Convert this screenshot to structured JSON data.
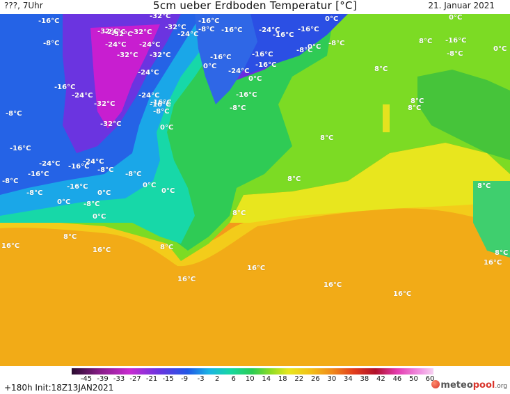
{
  "header": {
    "left": "???, 7Uhr",
    "title": "5cm ueber Erdboden Temperatur [°C]",
    "date": "21. Januar 2021"
  },
  "colors": {
    "extreme_cold": "#7a1fd6",
    "very_cold": "#1f4be0",
    "cold": "#13b6e0",
    "zero": "#10d48a",
    "cool": "#23c95a",
    "mild": "#7cdb24",
    "warm_yellow": "#e8e61e",
    "warm": "#f2c018",
    "hot": "#f39a1b"
  },
  "labels": [
    {
      "text": "-16°C"
    },
    {
      "text": "-32°C"
    },
    {
      "text": "-24°C"
    },
    {
      "text": "-32°C"
    },
    {
      "text": "-32°C"
    },
    {
      "text": "-24°C"
    },
    {
      "text": "-16°C"
    },
    {
      "text": "-8°C"
    },
    {
      "text": "-16°C"
    },
    {
      "text": "-24°C"
    },
    {
      "text": "-16°C"
    },
    {
      "text": "-16°C"
    },
    {
      "text": "0°C"
    },
    {
      "text": "0°C"
    },
    {
      "text": "-8°C"
    },
    {
      "text": "-8°C"
    },
    {
      "text": "-32°C"
    },
    {
      "text": "-32°C"
    },
    {
      "text": "-16°C"
    },
    {
      "text": "0°C"
    },
    {
      "text": "-24°C"
    },
    {
      "text": "-16°C"
    },
    {
      "text": "-8°C"
    },
    {
      "text": "0°C"
    },
    {
      "text": "-16°C"
    },
    {
      "text": "-24°C"
    },
    {
      "text": "-24°C"
    },
    {
      "text": "-16°C"
    },
    {
      "text": "0°C"
    },
    {
      "text": "-16°C"
    },
    {
      "text": "-8°C"
    },
    {
      "text": "8°C"
    },
    {
      "text": "-16°C"
    },
    {
      "text": "-24°C"
    },
    {
      "text": "-32°C"
    },
    {
      "text": "-16°C"
    },
    {
      "text": "-8°C"
    },
    {
      "text": "8°C"
    },
    {
      "text": "8°C"
    },
    {
      "text": "-8°C"
    },
    {
      "text": "-32°C"
    },
    {
      "text": "0°C"
    },
    {
      "text": "8°C"
    },
    {
      "text": "-16°C"
    },
    {
      "text": "8°C"
    },
    {
      "text": "-24°C"
    },
    {
      "text": "-24°C"
    },
    {
      "text": "-16°C"
    },
    {
      "text": "-16°C"
    },
    {
      "text": "-8°C"
    },
    {
      "text": "-8°C"
    },
    {
      "text": "-16°C"
    },
    {
      "text": "-8°C"
    },
    {
      "text": "0°C"
    },
    {
      "text": "8°C"
    },
    {
      "text": "8°C"
    },
    {
      "text": "0°C"
    },
    {
      "text": "-8°C"
    },
    {
      "text": "0°C"
    },
    {
      "text": "0°C"
    },
    {
      "text": "0°C"
    },
    {
      "text": "-8°C"
    },
    {
      "text": "0°C"
    },
    {
      "text": "8°C"
    },
    {
      "text": "8°C"
    },
    {
      "text": "16°C"
    },
    {
      "text": "16°C"
    },
    {
      "text": "8°C"
    },
    {
      "text": "16°C"
    },
    {
      "text": "16°C"
    },
    {
      "text": "16°C"
    },
    {
      "text": "16°C"
    },
    {
      "text": "16°C"
    },
    {
      "text": "8°C"
    },
    {
      "text": "-8°C"
    },
    {
      "text": "-16°C"
    },
    {
      "text": "-32°C"
    },
    {
      "text": "-24°C"
    },
    {
      "text": "-24°C"
    },
    {
      "text": "-32°C"
    }
  ],
  "colorbar": {
    "labels": [
      "-45",
      "-39",
      "-33",
      "-27",
      "-21",
      "-15",
      "-9",
      "-3",
      "2",
      "6",
      "10",
      "14",
      "18",
      "22",
      "26",
      "30",
      "34",
      "38",
      "42",
      "46",
      "50",
      "60"
    ]
  },
  "footer": {
    "run": "+180h  Init:18Z13JAN2021",
    "logo_meteo": "meteo",
    "logo_pool": "pool",
    "logo_org": ".org"
  }
}
